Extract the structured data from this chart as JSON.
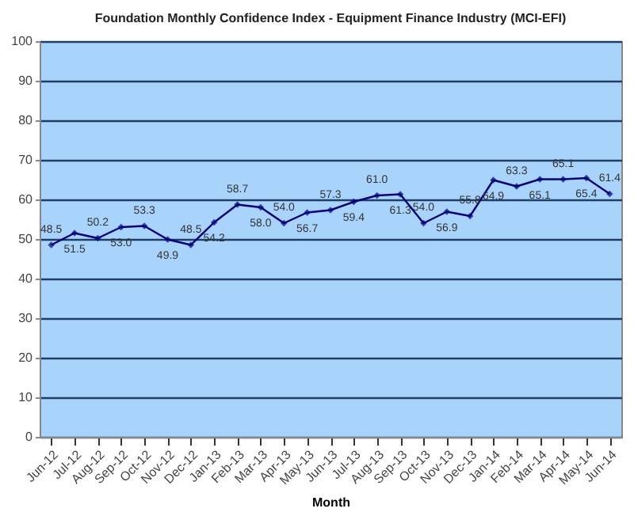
{
  "chart_data": {
    "type": "line",
    "title": "Foundation Monthly Confidence Index - Equipment Finance Industry (MCI-EFI)",
    "xlabel": "Month",
    "categories": [
      "Jun-12",
      "Jul-12",
      "Aug-12",
      "Sep-12",
      "Oct-12",
      "Nov-12",
      "Dec-12",
      "Jan-13",
      "Feb-13",
      "Mar-13",
      "Apr-13",
      "May-13",
      "Jun-13",
      "Jul-13",
      "Aug-13",
      "Sep-13",
      "Oct-13",
      "Nov-13",
      "Dec-13",
      "Jan-14",
      "Feb-14",
      "Mar-14",
      "Apr-14",
      "May-14",
      "Jun-14"
    ],
    "series": [
      {
        "color": "#000080",
        "values": [
          48.5,
          51.5,
          50.2,
          53.0,
          53.3,
          49.9,
          48.5,
          54.2,
          58.7,
          58.0,
          54.0,
          56.7,
          57.3,
          59.4,
          61.0,
          61.3,
          54.0,
          56.9,
          55.8,
          64.9,
          63.3,
          65.1,
          65.1,
          65.4,
          61.4
        ]
      }
    ],
    "value_labels": [
      "48.5",
      "51.5",
      "50.2",
      "53.0",
      "53.3",
      "49.9",
      "48.5",
      "54.2",
      "58.7",
      "58.0",
      "54.0",
      "56.7",
      "57.3",
      "59.4",
      "61.0",
      "61.3",
      "54.0",
      "56.9",
      "55.8",
      "64.9",
      "63.3",
      "65.1",
      "65.1",
      "65.4",
      "61.4"
    ],
    "ylim": [
      0,
      100
    ],
    "yticks": [
      0,
      10,
      20,
      30,
      40,
      50,
      60,
      70,
      80,
      90,
      100
    ],
    "grid": "y",
    "marker": "diamond",
    "line_style": "solid"
  }
}
